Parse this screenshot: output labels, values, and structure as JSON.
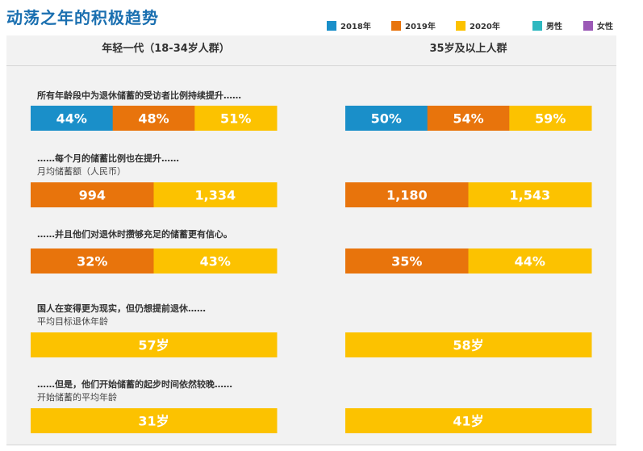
{
  "title": "动荡之年的积极趋势",
  "legend": [
    {
      "label": "2018年",
      "color": "#1a8fc9"
    },
    {
      "label": "2019年",
      "color": "#e8740c"
    },
    {
      "label": "2020年",
      "color": "#fcc200"
    },
    {
      "label": "男性",
      "color": "#2fb8c0"
    },
    {
      "label": "女性",
      "color": "#9b59b6"
    }
  ],
  "columns": [
    "年轻一代（18-34岁人群）",
    "35岁及以上人群"
  ],
  "sections": [
    {
      "title": "所有年龄段中为退休储蓄的受访者比例持续提升……",
      "subtitle": ""
    },
    {
      "title": "……每个月的储蓄比例也在提升……",
      "subtitle": "月均储蓄额（人民币）"
    },
    {
      "title": "……并且他们对退休时攒够充足的储蓄更有信心。",
      "subtitle": ""
    },
    {
      "title": "国人在变得更为现实，但仍想提前退休……",
      "subtitle": "平均目标退休年龄"
    },
    {
      "title": "……但是，他们开始储蓄的起步时间依然较晚……",
      "subtitle": "开始储蓄的平均年龄"
    }
  ],
  "chart_data": [
    {
      "type": "bar",
      "title": "所有年龄段中为退休储蓄的受访者比例持续提升……",
      "groups": [
        "年轻一代（18-34岁人群）",
        "35岁及以上人群"
      ],
      "series": [
        {
          "name": "2018年",
          "color": "#1a8fc9",
          "values": [
            44,
            50
          ],
          "labels": [
            "44%",
            "50%"
          ]
        },
        {
          "name": "2019年",
          "color": "#e8740c",
          "values": [
            48,
            54
          ],
          "labels": [
            "48%",
            "54%"
          ]
        },
        {
          "name": "2020年",
          "color": "#fcc200",
          "values": [
            51,
            59
          ],
          "labels": [
            "51%",
            "59%"
          ]
        }
      ]
    },
    {
      "type": "bar",
      "title": "……每个月的储蓄比例也在提升……",
      "subtitle": "月均储蓄额（人民币）",
      "groups": [
        "年轻一代（18-34岁人群）",
        "35岁及以上人群"
      ],
      "series": [
        {
          "name": "2019年",
          "color": "#e8740c",
          "values": [
            994,
            1180
          ],
          "labels": [
            "994",
            "1,180"
          ]
        },
        {
          "name": "2020年",
          "color": "#fcc200",
          "values": [
            1334,
            1543
          ],
          "labels": [
            "1,334",
            "1,543"
          ]
        }
      ]
    },
    {
      "type": "bar",
      "title": "……并且他们对退休时攒够充足的储蓄更有信心。",
      "groups": [
        "年轻一代（18-34岁人群）",
        "35岁及以上人群"
      ],
      "series": [
        {
          "name": "2019年",
          "color": "#e8740c",
          "values": [
            32,
            35
          ],
          "labels": [
            "32%",
            "35%"
          ]
        },
        {
          "name": "2020年",
          "color": "#fcc200",
          "values": [
            43,
            44
          ],
          "labels": [
            "43%",
            "44%"
          ]
        }
      ]
    },
    {
      "type": "bar",
      "title": "国人在变得更为现实，但仍想提前退休……",
      "subtitle": "平均目标退休年龄",
      "groups": [
        "年轻一代（18-34岁人群）",
        "35岁及以上人群"
      ],
      "series": [
        {
          "name": "2020年",
          "color": "#fcc200",
          "values": [
            57,
            58
          ],
          "labels": [
            "57岁",
            "58岁"
          ]
        }
      ]
    },
    {
      "type": "bar",
      "title": "……但是，他们开始储蓄的起步时间依然较晚……",
      "subtitle": "开始储蓄的平均年龄",
      "groups": [
        "年轻一代（18-34岁人群）",
        "35岁及以上人群"
      ],
      "series": [
        {
          "name": "2020年",
          "color": "#fcc200",
          "values": [
            31,
            41
          ],
          "labels": [
            "31岁",
            "41岁"
          ]
        }
      ]
    }
  ]
}
